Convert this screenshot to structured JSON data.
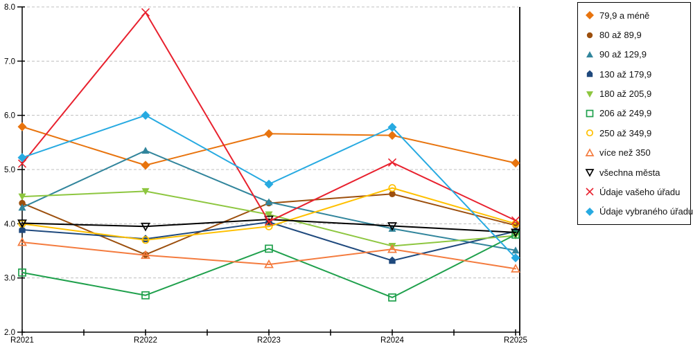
{
  "chart_data": {
    "type": "line",
    "title": "",
    "xlabel": "",
    "ylabel": "",
    "categories": [
      "R2021",
      "R2022",
      "R2023",
      "R2024",
      "R2025"
    ],
    "ylim": [
      2.0,
      8.0
    ],
    "ytick_step": 1.0,
    "ytick_labels": [
      "2.0",
      "3.0",
      "4.0",
      "5.0",
      "6.0",
      "7.0",
      "8.0"
    ],
    "grid": "horizontal dashed gridlines",
    "grid_color": "#BFBFBF",
    "axis_color": "#000000",
    "legend_position": "right",
    "series": [
      {
        "name": "79,9 a méně",
        "color": "#E8740E",
        "marker": "diamond",
        "fill": "solid",
        "values": [
          5.79,
          5.08,
          5.66,
          5.63,
          5.12
        ]
      },
      {
        "name": "80 až 89,9",
        "color": "#9C4F0D",
        "marker": "circle",
        "fill": "solid",
        "values": [
          4.38,
          3.43,
          4.38,
          4.55,
          3.97
        ]
      },
      {
        "name": "90 až 129,9",
        "color": "#31859C",
        "marker": "triangle-up",
        "fill": "solid",
        "values": [
          4.3,
          5.35,
          4.4,
          3.91,
          3.51
        ]
      },
      {
        "name": "130 až 179,9",
        "color": "#1F497D",
        "marker": "pentagon",
        "fill": "solid",
        "values": [
          3.89,
          3.72,
          4.03,
          3.32,
          3.86
        ]
      },
      {
        "name": "180 až 205,9",
        "color": "#8DC63F",
        "marker": "triangle-down",
        "fill": "solid",
        "values": [
          4.5,
          4.6,
          4.17,
          3.59,
          3.78
        ]
      },
      {
        "name": "206 až 249,9",
        "color": "#1FA04C",
        "marker": "square",
        "fill": "open",
        "values": [
          3.1,
          2.68,
          3.54,
          2.64,
          3.8
        ]
      },
      {
        "name": "250 až 349,9",
        "color": "#FFC000",
        "marker": "circle",
        "fill": "open",
        "values": [
          4.0,
          3.7,
          3.95,
          4.66,
          4.0
        ]
      },
      {
        "name": "více než 350",
        "color": "#F47B3E",
        "marker": "triangle-up",
        "fill": "open",
        "values": [
          3.66,
          3.42,
          3.25,
          3.53,
          3.17
        ]
      },
      {
        "name": "všechna města",
        "color": "#000000",
        "marker": "triangle-down",
        "fill": "open",
        "values": [
          4.01,
          3.95,
          4.08,
          3.96,
          3.84
        ]
      },
      {
        "name": "Údaje vašeho úřadu",
        "color": "#E8212E",
        "marker": "x",
        "fill": "open",
        "values": [
          5.11,
          7.9,
          4.04,
          5.13,
          4.06
        ]
      },
      {
        "name": "Údaje vybraného úřadu",
        "color": "#27AAE1",
        "marker": "diamond",
        "fill": "solid",
        "values": [
          5.22,
          6.0,
          4.73,
          5.78,
          3.37
        ]
      }
    ]
  }
}
